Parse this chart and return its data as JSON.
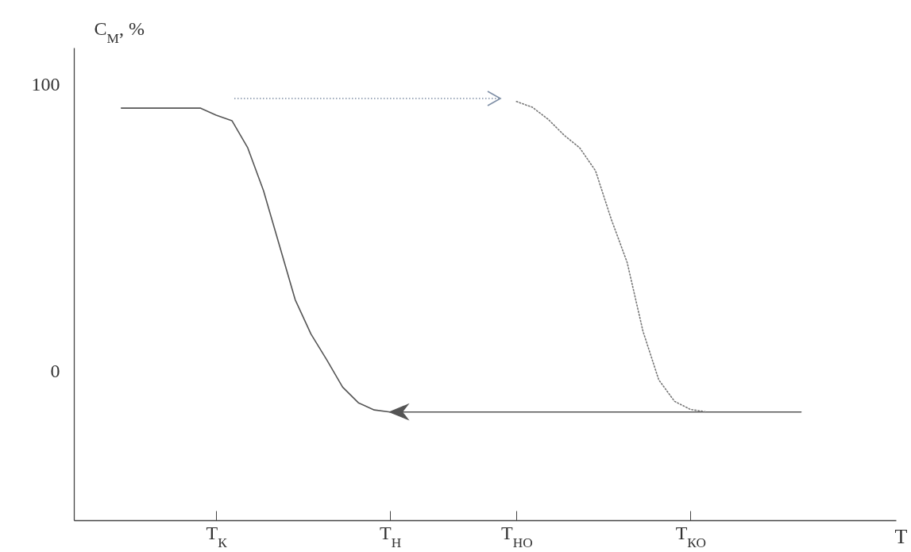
{
  "chart_data": {
    "type": "line",
    "ylabel": "C$_{М}$, %",
    "xlabel": "Т",
    "categories": [
      null,
      null,
      null,
      null,
      null,
      null,
      null,
      null,
      null,
      "Т$_{К}$",
      null,
      null,
      null,
      null,
      null,
      null,
      null,
      null,
      null,
      null,
      "Т$_{Н}$",
      null,
      null,
      null,
      null,
      null,
      null,
      null,
      "Т$_{НО}$",
      null,
      null,
      null,
      null,
      null,
      null,
      null,
      null,
      null,
      null,
      "Т$_{КО}$",
      null,
      null,
      null,
      null,
      null,
      null,
      null,
      null,
      null,
      null,
      null,
      null,
      null
    ],
    "ylim": [
      -52,
      113
    ],
    "yticks": [
      0,
      100
    ],
    "series": [
      {
        "color": "#555555",
        "line_style": "solid",
        "values": [
          null,
          null,
          null,
          91.9,
          91.9,
          91.9,
          91.9,
          91.9,
          91.9,
          89.4,
          87.5,
          78,
          63,
          44,
          25,
          13,
          4,
          -5.5,
          -11,
          -13.5,
          -14.2,
          null,
          null,
          null,
          null,
          null,
          null,
          null,
          null,
          null,
          null,
          null,
          null,
          null,
          null,
          null,
          null,
          null,
          null,
          null,
          null,
          null,
          null,
          null,
          null,
          null,
          -14.2,
          null,
          null,
          null,
          null,
          null,
          null
        ]
      },
      {
        "color": "#777777",
        "line_style": "dotted",
        "values": [
          null,
          null,
          null,
          null,
          null,
          null,
          null,
          null,
          null,
          null,
          null,
          null,
          null,
          null,
          null,
          null,
          null,
          null,
          null,
          null,
          null,
          null,
          null,
          null,
          null,
          null,
          null,
          null,
          94.2,
          92.2,
          88,
          82.5,
          78,
          70,
          53,
          38,
          14,
          -3,
          -10.5,
          -13.3,
          -14.2,
          null,
          null,
          null,
          null,
          null,
          null,
          null,
          null,
          null,
          null,
          null,
          null
        ]
      }
    ]
  }
}
